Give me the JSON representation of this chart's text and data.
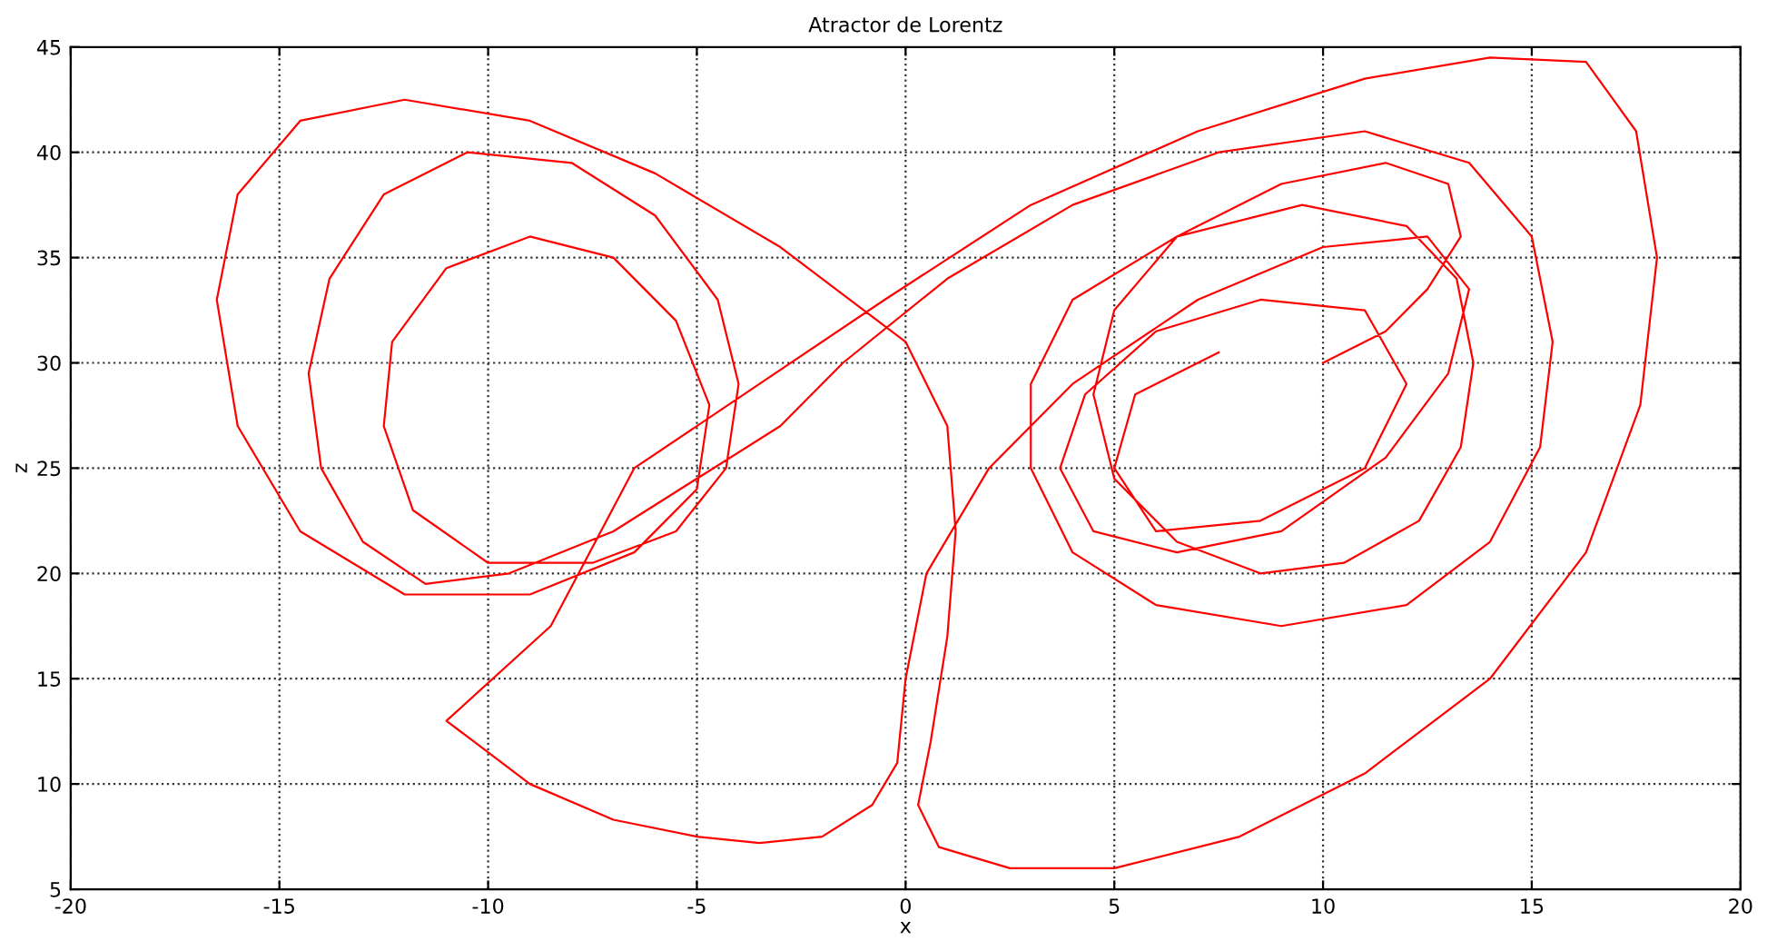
{
  "chart_data": {
    "type": "line",
    "title": "Atractor de Lorentz",
    "xlabel": "x",
    "ylabel": "z",
    "xlim": [
      -20,
      20
    ],
    "xticks": [
      -20,
      -15,
      -10,
      -5,
      0,
      5,
      10,
      15,
      20
    ],
    "ylim": [
      5,
      45
    ],
    "yticks": [
      5,
      10,
      15,
      20,
      25,
      30,
      35,
      40,
      45
    ],
    "grid": true,
    "marker": "none",
    "line_style": "solid",
    "series": [
      {
        "color": "#ff0000",
        "x": [
          10,
          11.5,
          12.5,
          13.3,
          13,
          11.5,
          9,
          6.5,
          5,
          4.5,
          5,
          6.5,
          8.5,
          10.5,
          12.3,
          13.3,
          13.6,
          13.2,
          12,
          9.5,
          6.5,
          4,
          3,
          3,
          4,
          6,
          9,
          12,
          14,
          15.2,
          15.5,
          15,
          13.5,
          11,
          7.5,
          4,
          1,
          -1.5,
          -3,
          -5,
          -7,
          -9.5,
          -11.5,
          -13,
          -14,
          -14.3,
          -13.8,
          -12.5,
          -10.5,
          -8,
          -6,
          -4.5,
          -4,
          -4.3,
          -5.5,
          -7.5,
          -10,
          -11.8,
          -12.5,
          -12.3,
          -11,
          -9,
          -7,
          -5.5,
          -4.7,
          -5,
          -6.5,
          -9,
          -12,
          -14.5,
          -16,
          -16.5,
          -16,
          -14.5,
          -12,
          -9,
          -6,
          -3,
          0,
          1,
          1.2,
          1,
          0.6,
          0.3,
          0.8,
          2.5,
          5,
          8,
          11,
          14,
          16.3,
          17.6,
          18,
          17.5,
          16.3,
          14,
          11,
          7,
          3,
          -0.5,
          -3.5,
          -6.5,
          -8.5,
          -11,
          -9,
          -7,
          -5,
          -3.5,
          -2,
          -0.8,
          -0.2,
          0,
          0.5,
          2,
          4,
          7,
          10,
          12.5,
          13.5,
          13,
          11.5,
          9,
          6.5,
          4.5,
          3.7,
          4.3,
          6,
          8.5,
          11,
          12,
          11,
          8.5,
          6,
          5,
          5.5,
          7.5
        ],
        "values": [
          30,
          31.5,
          33.5,
          36,
          38.5,
          39.5,
          38.5,
          36,
          32.5,
          28.5,
          24.5,
          21.5,
          20,
          20.5,
          22.5,
          26,
          30,
          34,
          36.5,
          37.5,
          36,
          33,
          29,
          25,
          21,
          18.5,
          17.5,
          18.5,
          21.5,
          26,
          31,
          36,
          39.5,
          41,
          40,
          37.5,
          34,
          30,
          27,
          24.5,
          22,
          20,
          19.5,
          21.5,
          25,
          29.5,
          34,
          38,
          40,
          39.5,
          37,
          33,
          29,
          25,
          22,
          20.5,
          20.5,
          23,
          27,
          31,
          34.5,
          36,
          35,
          32,
          28,
          24,
          21,
          19,
          19,
          22,
          27,
          33,
          38,
          41.5,
          42.5,
          41.5,
          39,
          35.5,
          31,
          27,
          22,
          17,
          12,
          9,
          7,
          6,
          6,
          7.5,
          10.5,
          15,
          21,
          28,
          35,
          41,
          44.3,
          44.5,
          43.5,
          41,
          37.5,
          33,
          29,
          25,
          17.5,
          13,
          10,
          8.3,
          7.5,
          7.2,
          7.5,
          9,
          11,
          15,
          20,
          25,
          29,
          33,
          35.5,
          36,
          33.5,
          29.5,
          25.5,
          22,
          21,
          22,
          25,
          28.5,
          31.5,
          33,
          32.5,
          29,
          25,
          22.5,
          22,
          25,
          28.5,
          30.5
        ]
      }
    ]
  }
}
